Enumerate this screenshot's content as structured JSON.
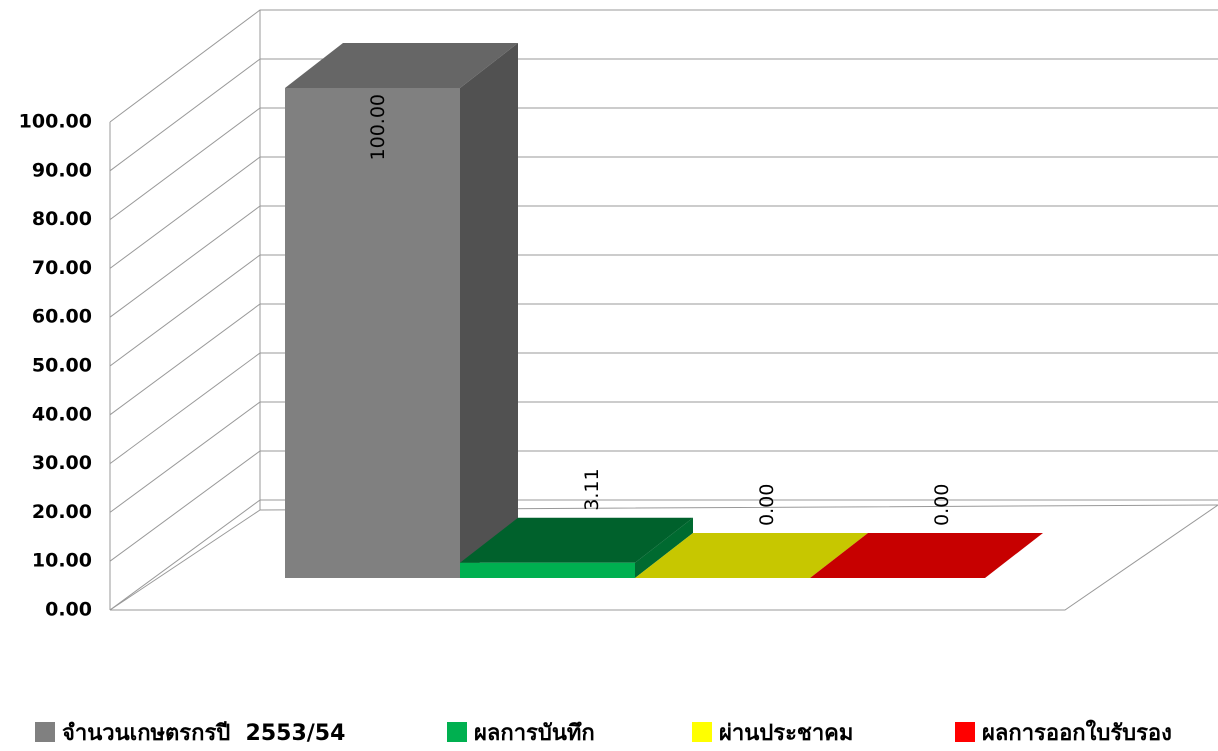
{
  "chart_data": {
    "type": "bar3d",
    "series": [
      {
        "name": "จำนวนเกษตรกรปี  2553/54",
        "color": "#808080",
        "values": [
          100
        ],
        "value_labels": [
          "100.00"
        ]
      },
      {
        "name": "ผลการบันทึก",
        "color": "#00b050",
        "values": [
          3.11
        ],
        "value_labels": [
          "3.11"
        ]
      },
      {
        "name": "ผ่านประชาคม",
        "color": "#ffff00",
        "values": [
          0
        ],
        "value_labels": [
          "0.00"
        ]
      },
      {
        "name": "ผลการออกใบรับรอง",
        "color": "#ff0000",
        "values": [
          0
        ],
        "value_labels": [
          "0.00"
        ]
      }
    ],
    "ylim": [
      0,
      100
    ],
    "yticks": [
      {
        "value": 0,
        "label": "0.00"
      },
      {
        "value": 10,
        "label": "10.00"
      },
      {
        "value": 20,
        "label": "20.00"
      },
      {
        "value": 30,
        "label": "30.00"
      },
      {
        "value": 40,
        "label": "40.00"
      },
      {
        "value": 50,
        "label": "50.00"
      },
      {
        "value": 60,
        "label": "60.00"
      },
      {
        "value": 70,
        "label": "70.00"
      },
      {
        "value": 80,
        "label": "80.00"
      },
      {
        "value": 90,
        "label": "90.00"
      },
      {
        "value": 100,
        "label": "100.00"
      }
    ],
    "grid": true
  }
}
